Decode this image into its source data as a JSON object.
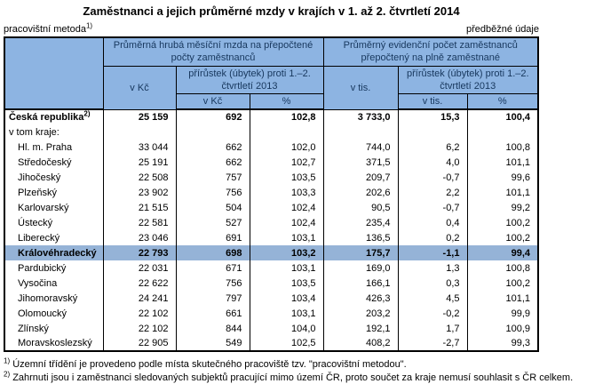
{
  "title": "Zaměstnanci a jejich průměrné mzdy v krajích v 1. až 2. čtvrtletí 2014",
  "meta": {
    "method_label": "pracovištní metoda",
    "method_sup": "1)",
    "preliminary": "předběžné údaje"
  },
  "header": {
    "group_wage": "Průměrná hrubá měsíční mzda na přepočtené počty zaměstnanců",
    "group_employees": "Průměrný evidenční počet zaměstnanců přepočtený na plně zaměstnané",
    "unit_kc": "v Kč",
    "unit_tis": "v tis.",
    "unit_pct": "%",
    "increment": "přírůstek (úbytek) proti 1.–2. čtvrtletí 2013"
  },
  "rows": [
    {
      "label": "Česká republika",
      "sup": "2)",
      "indent": false,
      "bold": true,
      "highlight": false,
      "cells": [
        "25 159",
        "692",
        "102,8",
        "3 733,0",
        "15,3",
        "100,4"
      ]
    },
    {
      "label": "v tom kraje:",
      "indent": false,
      "bold": false,
      "highlight": false,
      "cells": [
        "",
        "",
        "",
        "",
        "",
        ""
      ]
    },
    {
      "label": "Hl. m. Praha",
      "indent": true,
      "bold": false,
      "highlight": false,
      "cells": [
        "33 044",
        "662",
        "102,0",
        "744,0",
        "6,2",
        "100,8"
      ]
    },
    {
      "label": "Středočeský",
      "indent": true,
      "bold": false,
      "highlight": false,
      "cells": [
        "25 191",
        "662",
        "102,7",
        "371,5",
        "4,0",
        "101,1"
      ]
    },
    {
      "label": "Jihočeský",
      "indent": true,
      "bold": false,
      "highlight": false,
      "cells": [
        "22 508",
        "757",
        "103,5",
        "209,7",
        "-0,7",
        "99,6"
      ]
    },
    {
      "label": "Plzeňský",
      "indent": true,
      "bold": false,
      "highlight": false,
      "cells": [
        "23 902",
        "756",
        "103,3",
        "202,6",
        "2,2",
        "101,1"
      ]
    },
    {
      "label": "Karlovarský",
      "indent": true,
      "bold": false,
      "highlight": false,
      "cells": [
        "21 515",
        "504",
        "102,4",
        "90,5",
        "-0,7",
        "99,2"
      ]
    },
    {
      "label": "Ústecký",
      "indent": true,
      "bold": false,
      "highlight": false,
      "cells": [
        "22 581",
        "527",
        "102,4",
        "235,4",
        "0,4",
        "100,2"
      ]
    },
    {
      "label": "Liberecký",
      "indent": true,
      "bold": false,
      "highlight": false,
      "cells": [
        "23 046",
        "691",
        "103,1",
        "136,5",
        "0,2",
        "100,2"
      ]
    },
    {
      "label": "Královéhradecký",
      "indent": true,
      "bold": true,
      "highlight": true,
      "cells": [
        "22 793",
        "698",
        "103,2",
        "175,7",
        "-1,1",
        "99,4"
      ]
    },
    {
      "label": "Pardubický",
      "indent": true,
      "bold": false,
      "highlight": false,
      "cells": [
        "22 031",
        "671",
        "103,1",
        "169,0",
        "1,3",
        "100,8"
      ]
    },
    {
      "label": "Vysočina",
      "indent": true,
      "bold": false,
      "highlight": false,
      "cells": [
        "22 622",
        "756",
        "103,5",
        "166,1",
        "0,3",
        "100,2"
      ]
    },
    {
      "label": "Jihomoravský",
      "indent": true,
      "bold": false,
      "highlight": false,
      "cells": [
        "24 241",
        "797",
        "103,4",
        "426,3",
        "4,5",
        "101,1"
      ]
    },
    {
      "label": "Olomoucký",
      "indent": true,
      "bold": false,
      "highlight": false,
      "cells": [
        "22 102",
        "661",
        "103,1",
        "203,2",
        "-0,2",
        "99,9"
      ]
    },
    {
      "label": "Zlínský",
      "indent": true,
      "bold": false,
      "highlight": false,
      "cells": [
        "22 102",
        "844",
        "104,0",
        "192,1",
        "1,7",
        "100,9"
      ]
    },
    {
      "label": "Moravskoslezský",
      "indent": true,
      "bold": false,
      "highlight": false,
      "cells": [
        "22 905",
        "549",
        "102,5",
        "408,2",
        "-2,7",
        "99,3"
      ]
    }
  ],
  "footnotes": [
    {
      "sup": "1)",
      "text": "Územní třídění je provedeno podle místa skutečného pracoviště tzv. \"pracovištní metodou\"."
    },
    {
      "sup": "2)",
      "text": "Zahrnuti jsou i zaměstnanci sledovaných subjektů pracující mimo území ČR, proto součet za kraje nemusí souhlasit s ČR celkem."
    }
  ],
  "colors": {
    "header_fill": "#8DB4E2",
    "highlight_fill": "#95B3D7",
    "header_text": "#17375D",
    "border": "#000000"
  }
}
